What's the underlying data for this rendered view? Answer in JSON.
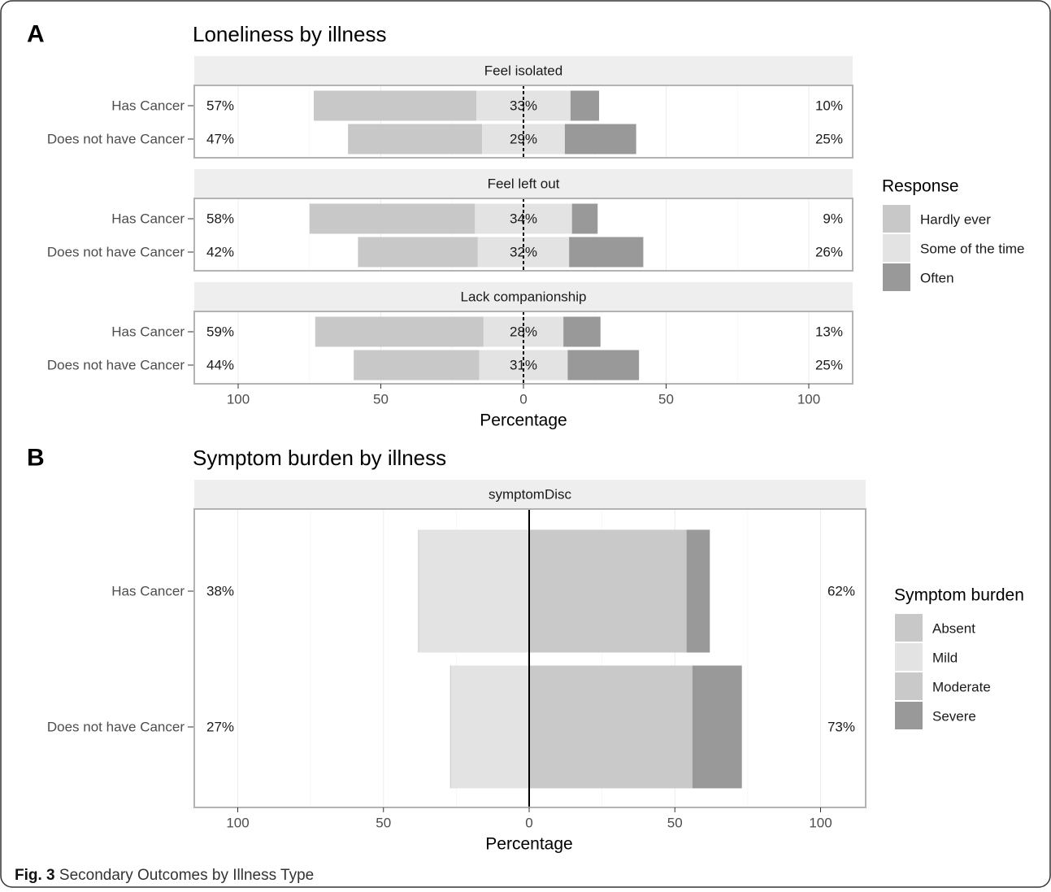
{
  "figure": {
    "caption_label": "Fig. 3",
    "caption_text": "Secondary Outcomes by Illness Type"
  },
  "chart_data": [
    {
      "panel_label": "A",
      "type": "bar",
      "orientation": "horizontal-diverging-stacked",
      "title": "Loneliness by illness",
      "xlabel": "Percentage",
      "xlim": [
        -100,
        100
      ],
      "x_ticks": [
        -100,
        -50,
        0,
        50,
        100
      ],
      "x_tick_labels": [
        "100",
        "50",
        "0",
        "50",
        "100"
      ],
      "grid": true,
      "legend_title": "Response",
      "legend_position": "right",
      "series": [
        {
          "name": "Hardly ever",
          "color": "#c8c8c8"
        },
        {
          "name": "Some of the time",
          "color": "#e3e3e3"
        },
        {
          "name": "Often",
          "color": "#999999"
        }
      ],
      "categories": [
        "Has Cancer",
        "Does not have Cancer"
      ],
      "facets": [
        {
          "title": "Feel isolated",
          "rows": [
            {
              "category": "Has Cancer",
              "values": [
                57,
                33,
                10
              ],
              "labels": [
                "57%",
                "33%",
                "10%"
              ]
            },
            {
              "category": "Does not have Cancer",
              "values": [
                47,
                29,
                25
              ],
              "labels": [
                "47%",
                "29%",
                "25%"
              ]
            }
          ]
        },
        {
          "title": "Feel left out",
          "rows": [
            {
              "category": "Has Cancer",
              "values": [
                58,
                34,
                9
              ],
              "labels": [
                "58%",
                "34%",
                "9%"
              ]
            },
            {
              "category": "Does not have Cancer",
              "values": [
                42,
                32,
                26
              ],
              "labels": [
                "42%",
                "32%",
                "26%"
              ]
            }
          ]
        },
        {
          "title": "Lack companionship",
          "rows": [
            {
              "category": "Has Cancer",
              "values": [
                59,
                28,
                13
              ],
              "labels": [
                "59%",
                "28%",
                "13%"
              ]
            },
            {
              "category": "Does not have Cancer",
              "values": [
                44,
                31,
                25
              ],
              "labels": [
                "44%",
                "31%",
                "25%"
              ]
            }
          ]
        }
      ]
    },
    {
      "panel_label": "B",
      "type": "bar",
      "orientation": "horizontal-diverging-stacked",
      "title": "Symptom burden by illness",
      "xlabel": "Percentage",
      "xlim": [
        -100,
        100
      ],
      "x_ticks": [
        -100,
        -50,
        0,
        50,
        100
      ],
      "x_tick_labels": [
        "100",
        "50",
        "0",
        "50",
        "100"
      ],
      "grid": true,
      "legend_title": "Symptom burden",
      "legend_position": "right",
      "series": [
        {
          "name": "Absent",
          "color": "#c8c8c8"
        },
        {
          "name": "Mild",
          "color": "#e3e3e3"
        },
        {
          "name": "Moderate",
          "color": "#c9c9c9"
        },
        {
          "name": "Severe",
          "color": "#999999"
        }
      ],
      "categories": [
        "Has Cancer",
        "Does not have Cancer"
      ],
      "facets": [
        {
          "title": "symptomDisc",
          "rows": [
            {
              "category": "Has Cancer",
              "values": [
                0,
                38,
                54,
                8
              ],
              "labels": [
                "38%",
                "62%"
              ]
            },
            {
              "category": "Does not have Cancer",
              "values": [
                0,
                27,
                56,
                17
              ],
              "labels": [
                "27%",
                "73%"
              ]
            }
          ]
        }
      ]
    }
  ]
}
